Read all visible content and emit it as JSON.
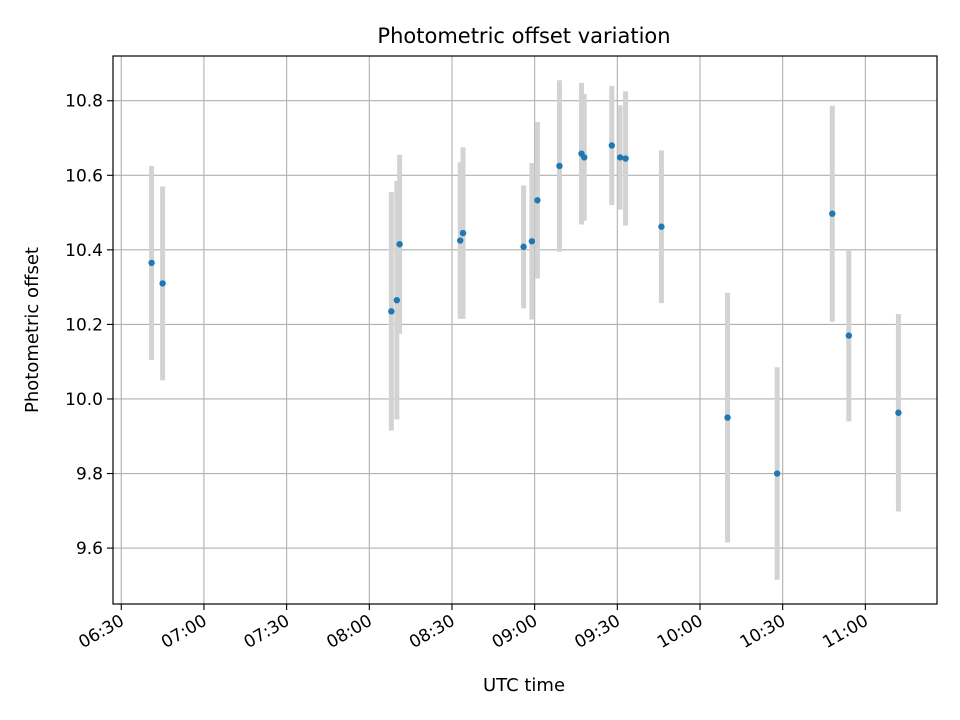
{
  "chart_data": {
    "type": "scatter",
    "title": "Photometric offset variation",
    "xlabel": "UTC time",
    "ylabel": "Photometric offset",
    "x_ticks": [
      "06:30",
      "07:00",
      "07:30",
      "08:00",
      "08:30",
      "09:00",
      "09:30",
      "10:00",
      "10:30",
      "11:00"
    ],
    "y_ticks": [
      "9.6",
      "9.8",
      "10.0",
      "10.2",
      "10.4",
      "10.6",
      "10.8"
    ],
    "xlim": [
      "06:27",
      "11:26"
    ],
    "ylim": [
      9.45,
      10.92
    ],
    "grid": true,
    "colors": {
      "points": "#1f77b4",
      "errorbars": "#d3d3d3",
      "grid": "#b0b0b0"
    },
    "series": [
      {
        "points": [
          {
            "x": "06:41",
            "y": 10.365,
            "yerr": 0.26
          },
          {
            "x": "06:45",
            "y": 10.31,
            "yerr": 0.26
          },
          {
            "x": "08:08",
            "y": 10.235,
            "yerr": 0.32
          },
          {
            "x": "08:10",
            "y": 10.265,
            "yerr": 0.32
          },
          {
            "x": "08:11",
            "y": 10.415,
            "yerr": 0.24
          },
          {
            "x": "08:33",
            "y": 10.425,
            "yerr": 0.21
          },
          {
            "x": "08:34",
            "y": 10.445,
            "yerr": 0.23
          },
          {
            "x": "08:56",
            "y": 10.408,
            "yerr": 0.165
          },
          {
            "x": "08:59",
            "y": 10.423,
            "yerr": 0.21
          },
          {
            "x": "09:01",
            "y": 10.533,
            "yerr": 0.21
          },
          {
            "x": "09:09",
            "y": 10.625,
            "yerr": 0.23
          },
          {
            "x": "09:17",
            "y": 10.658,
            "yerr": 0.19
          },
          {
            "x": "09:18",
            "y": 10.648,
            "yerr": 0.17
          },
          {
            "x": "09:28",
            "y": 10.68,
            "yerr": 0.16
          },
          {
            "x": "09:31",
            "y": 10.648,
            "yerr": 0.14
          },
          {
            "x": "09:33",
            "y": 10.645,
            "yerr": 0.18
          },
          {
            "x": "09:46",
            "y": 10.462,
            "yerr": 0.205
          },
          {
            "x": "10:10",
            "y": 9.95,
            "yerr": 0.335
          },
          {
            "x": "10:28",
            "y": 9.8,
            "yerr": 0.285
          },
          {
            "x": "10:48",
            "y": 10.497,
            "yerr": 0.29
          },
          {
            "x": "10:54",
            "y": 10.17,
            "yerr": 0.23
          },
          {
            "x": "11:12",
            "y": 9.963,
            "yerr": 0.265
          }
        ]
      }
    ]
  }
}
